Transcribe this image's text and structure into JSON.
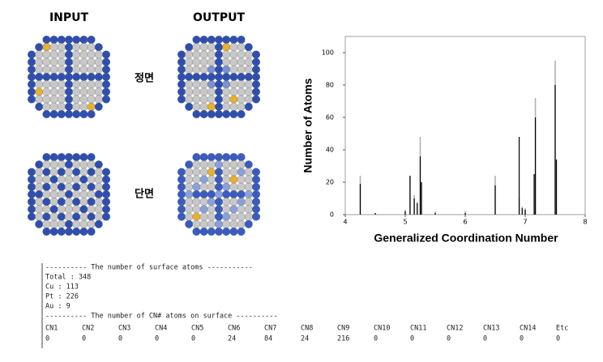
{
  "panels": {
    "input": "INPUT",
    "output": "OUTPUT",
    "front": "정면",
    "section": "단면"
  },
  "chart_data": {
    "type": "stem",
    "x": [
      4.25,
      4.5,
      5.0,
      5.08,
      5.15,
      5.2,
      5.25,
      5.27,
      5.5,
      6.0,
      6.5,
      6.9,
      6.95,
      7.0,
      7.15,
      7.17,
      7.5,
      7.52
    ],
    "series": [
      {
        "color": "#b0b0b0",
        "values": [
          24,
          1,
          3,
          24,
          12,
          8,
          48,
          20,
          2,
          2,
          24,
          10,
          5,
          4,
          25,
          72,
          95,
          34
        ]
      },
      {
        "color": "#000000",
        "values": [
          19,
          1,
          2,
          24,
          10,
          7,
          36,
          20,
          1,
          1,
          18,
          48,
          4,
          3,
          25,
          60,
          80,
          34
        ]
      }
    ],
    "xlabel": "Generalized Coordination Number",
    "ylabel": "Number of Atoms",
    "xlim": [
      4,
      8
    ],
    "xticks": [
      4,
      5,
      6,
      7,
      8
    ],
    "ylim": [
      0,
      110
    ],
    "yticks": [
      0,
      20,
      40,
      60,
      80,
      100
    ]
  },
  "console": {
    "lines": [
      "---------- The number of surface atoms -----------",
      "Total : 348",
      "Cu : 113",
      "Pt : 226",
      "Au : 9",
      "---------- The number of CN# atoms on surface ----------"
    ],
    "headers": [
      "CN1",
      "CN2",
      "CN3",
      "CN4",
      "CN5",
      "CN6",
      "CN7",
      "CN8",
      "CN9",
      "CN10",
      "CN11",
      "CN12",
      "CN13",
      "CN14",
      "Etc"
    ],
    "values": [
      0,
      0,
      0,
      0,
      0,
      24,
      84,
      24,
      216,
      0,
      0,
      0,
      0,
      0,
      0
    ]
  }
}
